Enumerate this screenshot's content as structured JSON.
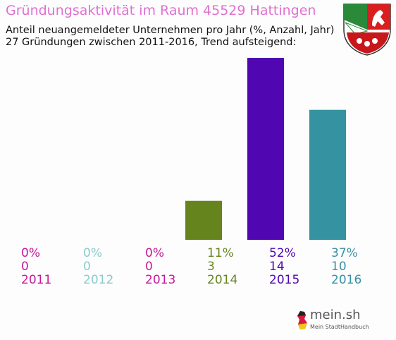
{
  "title": "Gründungsaktivität im Raum 45529 Hattingen",
  "subtitle_line1": "Anteil neuangemeldeter Unternehmen pro Jahr (%, Anzahl, Jahr)",
  "subtitle_line2": "27 Gründungen zwischen 2011-2016, Trend aufsteigend:",
  "logo": {
    "brand": "mein.sh",
    "tagline": "Mein StadtHandbuch"
  },
  "chart_data": {
    "type": "bar",
    "categories": [
      "2011",
      "2012",
      "2013",
      "2014",
      "2015",
      "2016"
    ],
    "percent_labels": [
      "0%",
      "0%",
      "0%",
      "11%",
      "52%",
      "37%"
    ],
    "values": [
      0,
      0,
      0,
      3,
      14,
      10
    ],
    "colors": [
      "#c8179a",
      "#88cccc",
      "#c8179a",
      "#66841e",
      "#5006b0",
      "#3592a0"
    ],
    "total": 27
  }
}
